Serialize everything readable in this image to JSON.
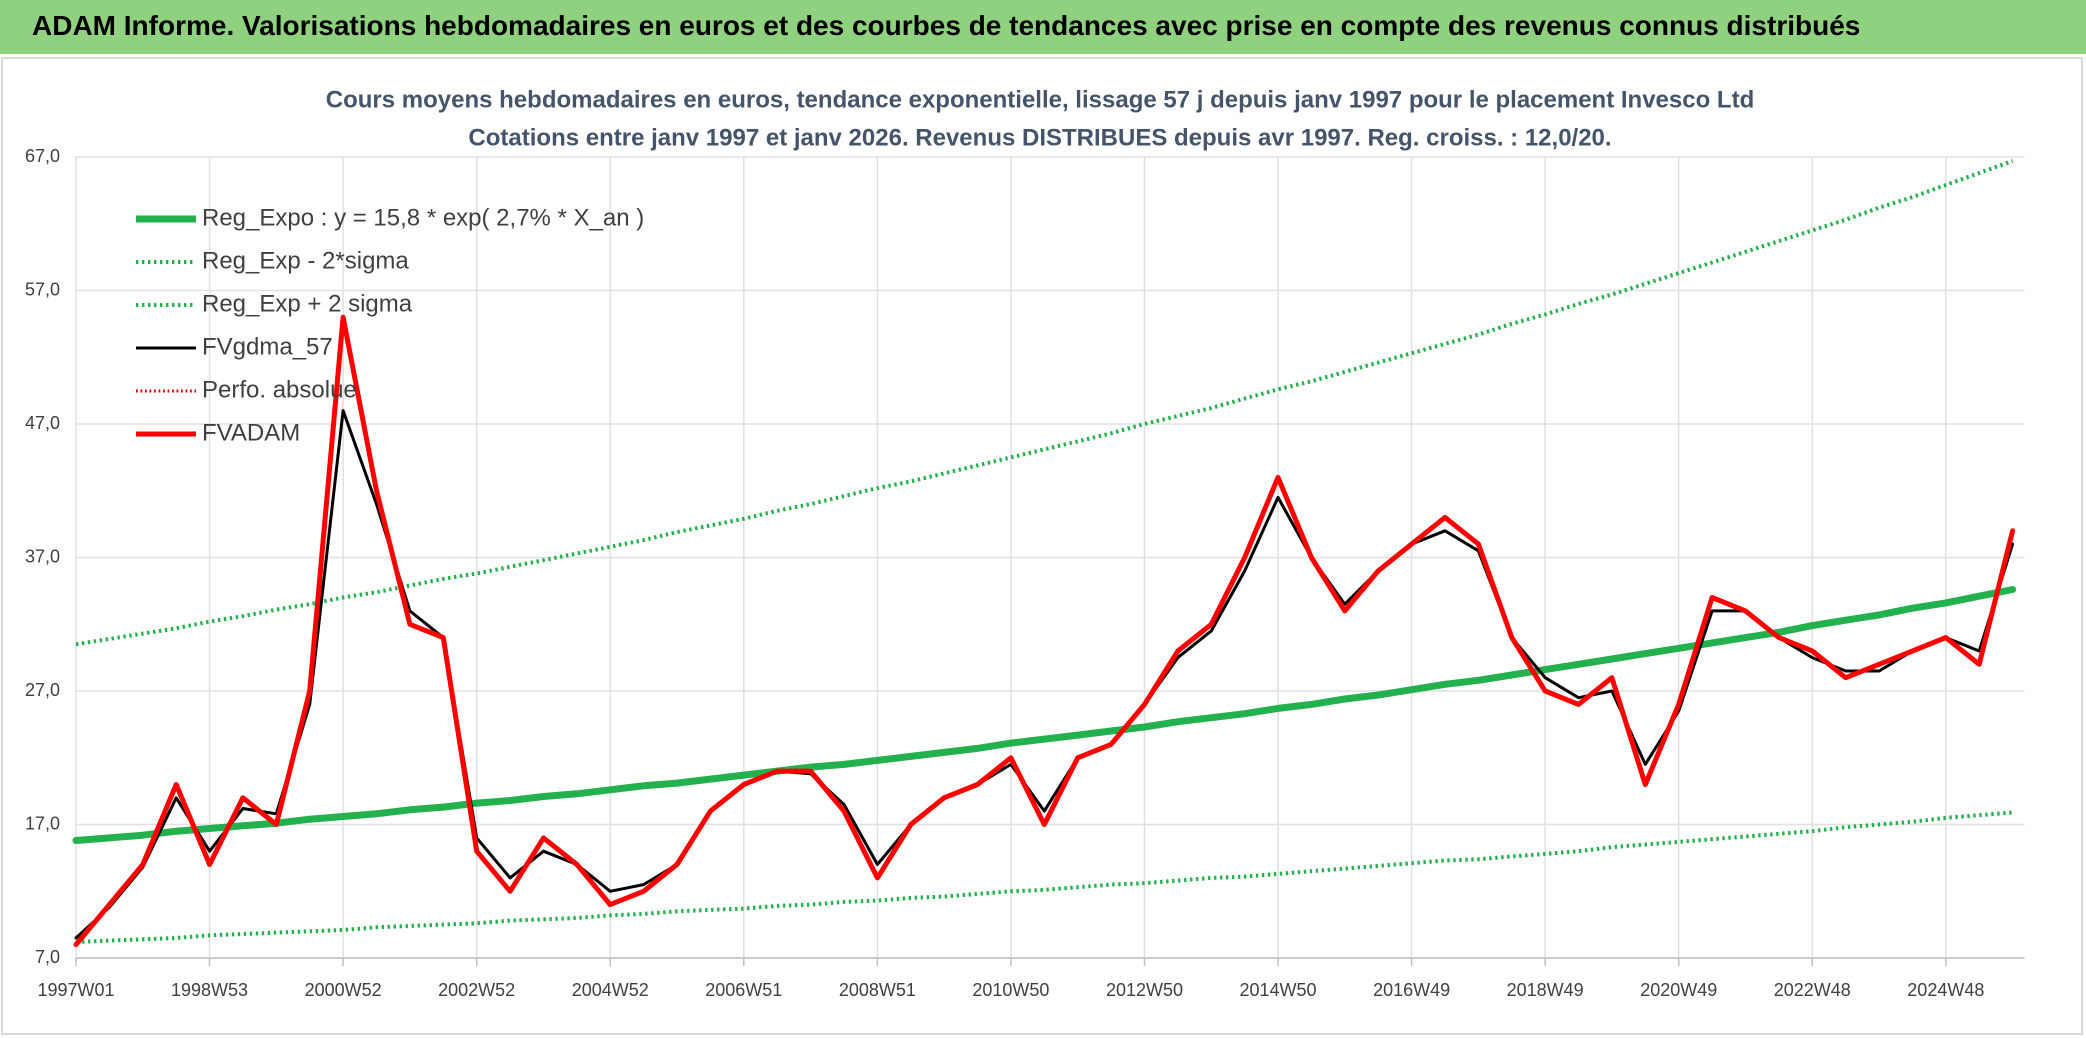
{
  "header": {
    "title": "ADAM Informe. Valorisations hebdomadaires en euros et des courbes de tendances avec prise en compte des revenus connus distribués"
  },
  "chart_data": {
    "type": "line",
    "subtitle": [
      "Cours moyens hebdomadaires en euros, tendance exponentielle, lissage 57 j depuis janv 1997 pour le placement Invesco Ltd",
      "Cotations entre janv 1997 et janv 2026. Revenus DISTRIBUES depuis avr 1997. Reg. croiss. : 12,0/20."
    ],
    "categories": [
      "1997W01",
      null,
      null,
      null,
      "1998W53",
      null,
      null,
      null,
      "2000W52",
      null,
      null,
      null,
      "2002W52",
      null,
      null,
      null,
      "2004W52",
      null,
      null,
      null,
      "2006W51",
      null,
      null,
      null,
      "2008W51",
      null,
      null,
      null,
      "2010W50",
      null,
      null,
      null,
      "2012W50",
      null,
      null,
      null,
      "2014W50",
      null,
      null,
      null,
      "2016W49",
      null,
      null,
      null,
      "2018W49",
      null,
      null,
      null,
      "2020W49",
      null,
      null,
      null,
      "2022W48",
      null,
      null,
      null,
      "2024W48",
      null,
      null
    ],
    "ylim": [
      7,
      67
    ],
    "yticks": [
      {
        "value": 7,
        "label": "7,0"
      },
      {
        "value": 17,
        "label": "17,0"
      },
      {
        "value": 27,
        "label": "27,0"
      },
      {
        "value": 37,
        "label": "37,0"
      },
      {
        "value": 47,
        "label": "47,0"
      },
      {
        "value": 57,
        "label": "57,0"
      },
      {
        "value": 67,
        "label": "67,0"
      }
    ],
    "grid": true,
    "legend": "upper left",
    "series": [
      {
        "name": "Reg_Expo : y = 15,8 * exp( 2,7% *  X_an )",
        "color": "#22b14c",
        "style": "solid",
        "width": 7,
        "values": [
          15.8,
          16.0,
          16.2,
          16.5,
          16.7,
          16.9,
          17.1,
          17.4,
          17.6,
          17.8,
          18.1,
          18.3,
          18.6,
          18.8,
          19.1,
          19.3,
          19.6,
          19.9,
          20.1,
          20.4,
          20.7,
          21.0,
          21.3,
          21.5,
          21.8,
          22.1,
          22.4,
          22.7,
          23.1,
          23.4,
          23.7,
          24.0,
          24.3,
          24.7,
          25.0,
          25.3,
          25.7,
          26.0,
          26.4,
          26.7,
          27.1,
          27.5,
          27.8,
          28.2,
          28.6,
          29.0,
          29.4,
          29.8,
          30.2,
          30.6,
          31.0,
          31.4,
          31.9,
          32.3,
          32.7,
          33.2,
          33.6,
          34.1,
          34.6
        ]
      },
      {
        "name": "Reg_Exp - 2*sigma",
        "color": "#22b14c",
        "style": "dotted",
        "width": 4,
        "values": [
          8.2,
          8.3,
          8.4,
          8.5,
          8.7,
          8.8,
          8.9,
          9.0,
          9.1,
          9.3,
          9.4,
          9.5,
          9.6,
          9.8,
          9.9,
          10.0,
          10.2,
          10.3,
          10.5,
          10.6,
          10.7,
          10.9,
          11.0,
          11.2,
          11.3,
          11.5,
          11.6,
          11.8,
          12.0,
          12.1,
          12.3,
          12.5,
          12.6,
          12.8,
          13.0,
          13.1,
          13.3,
          13.5,
          13.7,
          13.9,
          14.1,
          14.3,
          14.4,
          14.6,
          14.8,
          15.0,
          15.3,
          15.5,
          15.7,
          15.9,
          16.1,
          16.3,
          16.5,
          16.8,
          17.0,
          17.2,
          17.5,
          17.7,
          17.9
        ]
      },
      {
        "name": "Reg_Exp + 2 sigma",
        "color": "#22b14c",
        "style": "dotted",
        "width": 4,
        "values": [
          30.5,
          30.9,
          31.3,
          31.7,
          32.2,
          32.6,
          33.1,
          33.5,
          34.0,
          34.4,
          34.9,
          35.4,
          35.8,
          36.3,
          36.8,
          37.3,
          37.8,
          38.3,
          38.9,
          39.4,
          39.9,
          40.5,
          41.0,
          41.6,
          42.2,
          42.7,
          43.3,
          43.9,
          44.5,
          45.1,
          45.7,
          46.3,
          47.0,
          47.6,
          48.2,
          48.9,
          49.6,
          50.2,
          50.9,
          51.6,
          52.3,
          53.0,
          53.7,
          54.5,
          55.2,
          56.0,
          56.7,
          57.5,
          58.3,
          59.1,
          59.9,
          60.7,
          61.5,
          62.3,
          63.2,
          64.0,
          64.9,
          65.8,
          66.7
        ]
      },
      {
        "name": "FVgdma_57",
        "color": "#000000",
        "style": "solid",
        "width": 3,
        "values": [
          8.5,
          10.8,
          13.8,
          19.0,
          15.0,
          18.2,
          17.8,
          26.0,
          48.0,
          41.0,
          33.0,
          31.0,
          16.0,
          13.0,
          15.0,
          14.0,
          12.0,
          12.5,
          14.0,
          18.0,
          20.0,
          21.0,
          20.8,
          18.5,
          14.0,
          17.0,
          19.0,
          20.0,
          21.5,
          18.0,
          22.0,
          23.0,
          26.0,
          29.5,
          31.5,
          36.0,
          41.5,
          37.0,
          33.5,
          36.0,
          38.0,
          39.0,
          37.5,
          31.0,
          28.0,
          26.5,
          27.0,
          21.5,
          25.5,
          33.0,
          33.0,
          31.0,
          29.5,
          28.5,
          28.5,
          30.0,
          31.0,
          30.0,
          38.0
        ]
      },
      {
        "name": "Perfo. absolue",
        "color": "#e00000",
        "style": "dotted",
        "width": 3,
        "values": [
          null,
          null,
          null,
          null,
          null,
          null,
          null,
          null,
          null,
          null,
          null,
          null,
          null,
          null,
          null,
          null,
          null,
          null,
          null,
          null,
          null,
          null,
          null,
          null,
          null,
          null,
          null,
          null,
          null,
          null,
          null,
          null,
          null,
          null,
          null,
          null,
          null,
          null,
          null,
          null,
          null,
          null,
          null,
          null,
          null,
          null,
          null,
          null,
          null,
          null,
          null,
          null,
          null,
          null,
          null,
          null,
          null,
          null,
          null
        ]
      },
      {
        "name": "FVADAM",
        "color": "#ff0000",
        "style": "solid",
        "width": 5,
        "values": [
          8,
          11,
          14,
          20,
          14,
          19,
          17,
          27,
          55,
          42,
          32,
          31,
          15,
          12,
          16,
          14,
          11,
          12,
          14,
          18,
          20,
          21,
          21,
          18,
          13,
          17,
          19,
          20,
          22,
          17,
          22,
          23,
          26,
          30,
          32,
          37,
          43,
          37,
          33,
          36,
          38,
          40,
          38,
          31,
          27,
          26,
          28,
          20,
          26,
          34,
          33,
          31,
          30,
          28,
          29,
          30,
          31,
          29,
          39
        ]
      }
    ]
  }
}
